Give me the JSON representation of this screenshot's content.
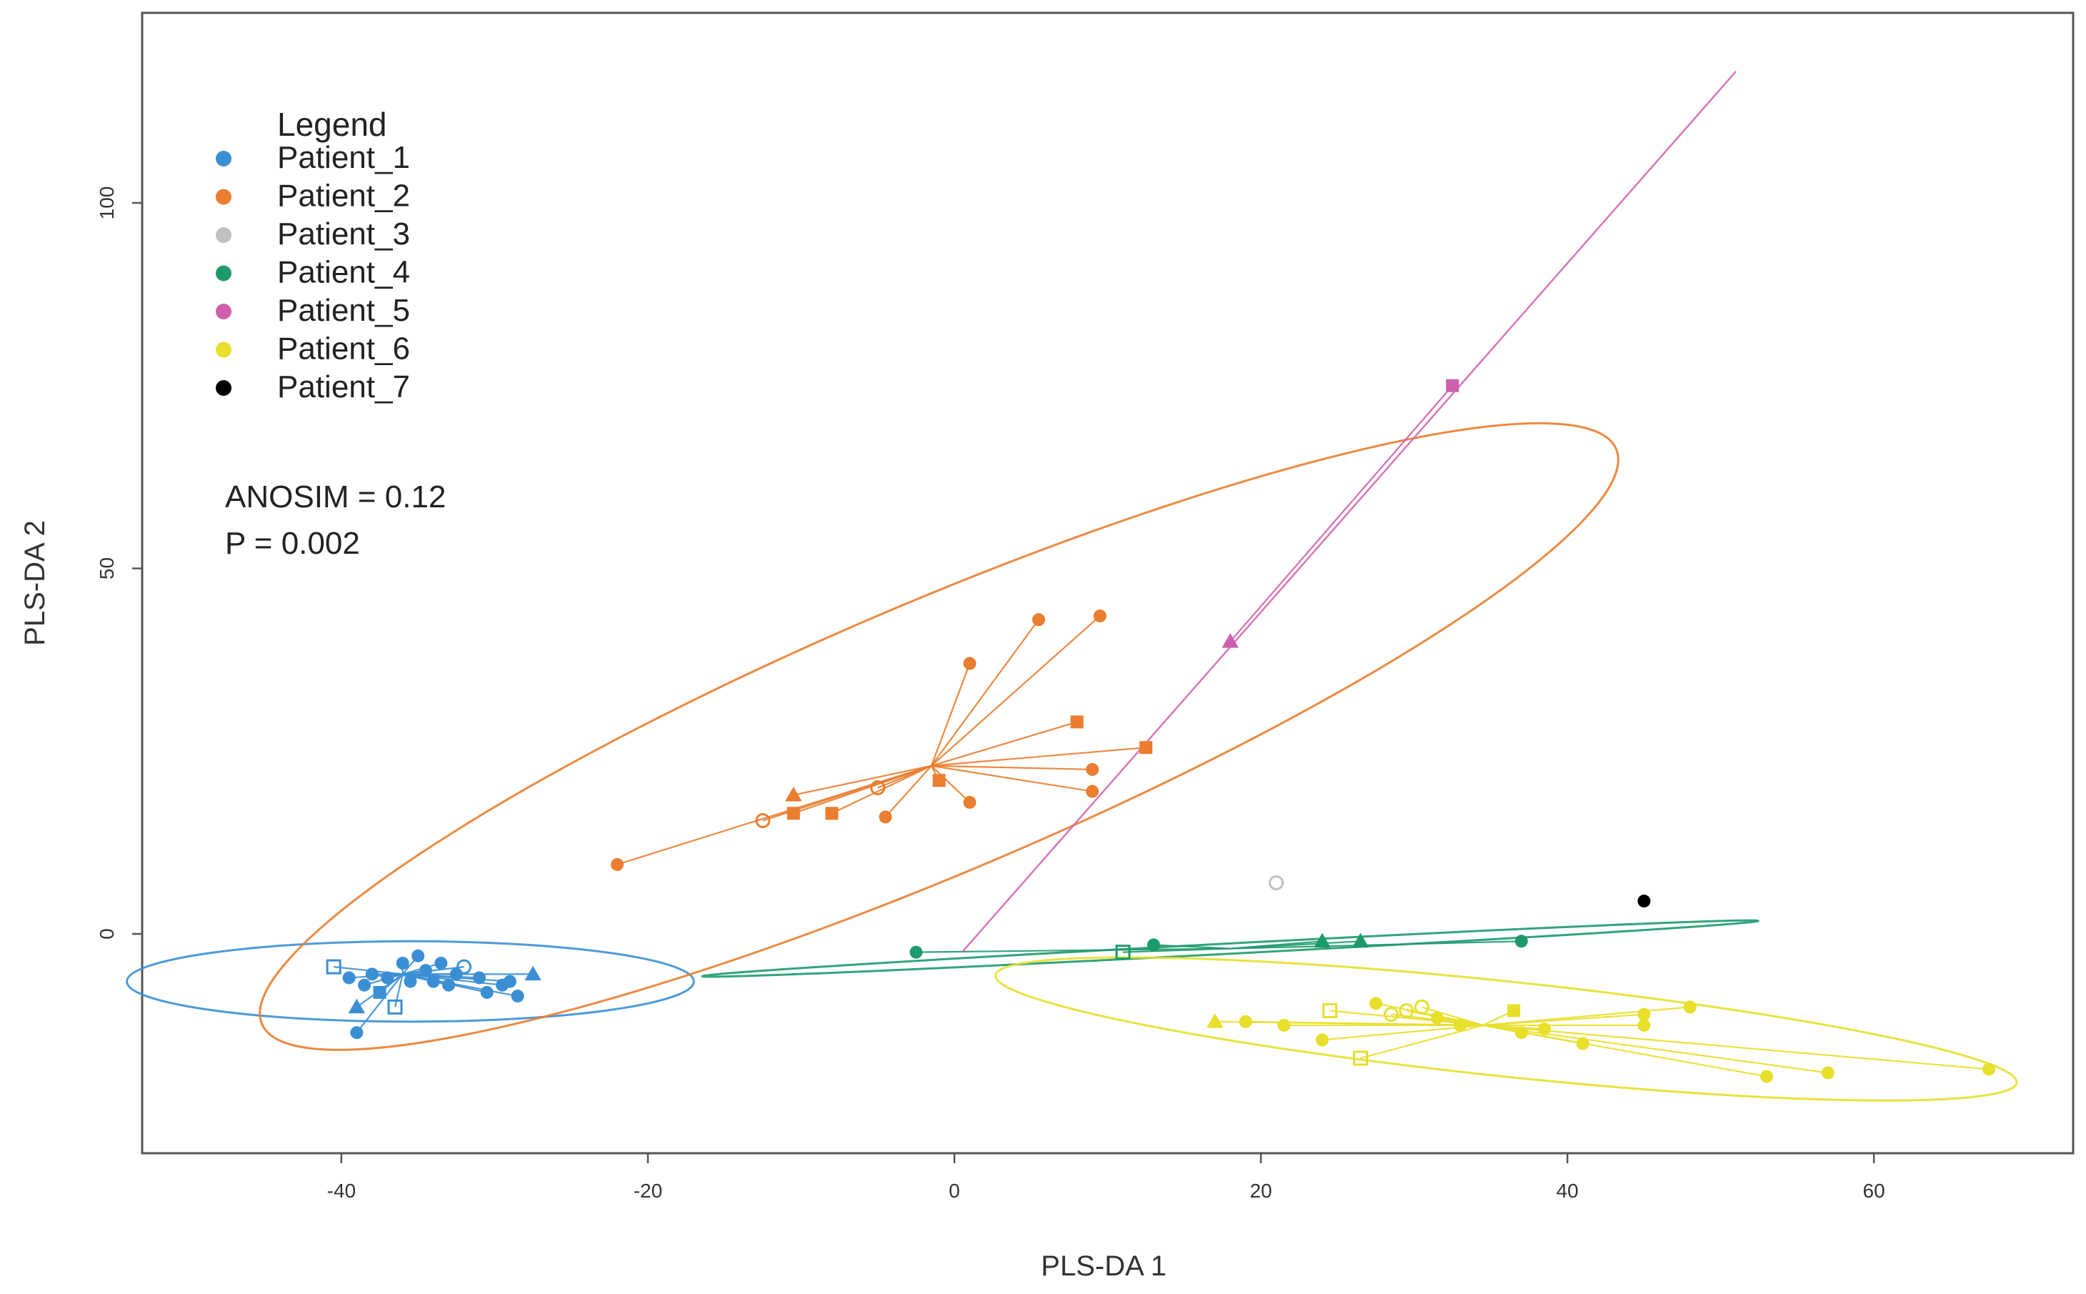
{
  "chart_data": {
    "type": "scatter",
    "title": "",
    "xlabel": "PLS-DA 1",
    "ylabel": "PLS-DA 2",
    "xlim": [
      -53,
      73
    ],
    "ylim": [
      -30,
      126
    ],
    "xticks": [
      -40,
      -20,
      0,
      20,
      40,
      60
    ],
    "yticks": [
      0,
      50,
      100
    ],
    "legend": {
      "title": "Legend",
      "position": "top-left",
      "entries": [
        "Patient_1",
        "Patient_2",
        "Patient_3",
        "Patient_4",
        "Patient_5",
        "Patient_6",
        "Patient_7"
      ]
    },
    "annotations": [
      "ANOSIM = 0.12",
      "P = 0.002"
    ],
    "series": [
      {
        "name": "Patient_1",
        "color": "#3a8fd4",
        "centroid": [
          -36,
          -5.5
        ],
        "ellipse": {
          "center": [
            -35.5,
            -6.5
          ],
          "rx": 18.5,
          "ry": 5.5,
          "angle": 0
        },
        "points": [
          {
            "x": -40.5,
            "y": -4.5,
            "shape": "square-open"
          },
          {
            "x": -39.5,
            "y": -6,
            "shape": "circle"
          },
          {
            "x": -38.5,
            "y": -7,
            "shape": "circle"
          },
          {
            "x": -38,
            "y": -5.5,
            "shape": "circle"
          },
          {
            "x": -37.5,
            "y": -8,
            "shape": "square"
          },
          {
            "x": -37,
            "y": -6,
            "shape": "circle"
          },
          {
            "x": -36.5,
            "y": -10,
            "shape": "square-open"
          },
          {
            "x": -36,
            "y": -4,
            "shape": "circle"
          },
          {
            "x": -35.5,
            "y": -6.5,
            "shape": "circle"
          },
          {
            "x": -35,
            "y": -3,
            "shape": "circle"
          },
          {
            "x": -34.5,
            "y": -5,
            "shape": "circle"
          },
          {
            "x": -34,
            "y": -6.5,
            "shape": "circle"
          },
          {
            "x": -33.5,
            "y": -4,
            "shape": "circle"
          },
          {
            "x": -33,
            "y": -7,
            "shape": "circle"
          },
          {
            "x": -32.5,
            "y": -5.5,
            "shape": "circle"
          },
          {
            "x": -32,
            "y": -4.5,
            "shape": "circle-open"
          },
          {
            "x": -31,
            "y": -6,
            "shape": "circle"
          },
          {
            "x": -30.5,
            "y": -8,
            "shape": "circle"
          },
          {
            "x": -29.5,
            "y": -7,
            "shape": "circle"
          },
          {
            "x": -29,
            "y": -6.5,
            "shape": "circle"
          },
          {
            "x": -28.5,
            "y": -8.5,
            "shape": "circle"
          },
          {
            "x": -27.5,
            "y": -5.5,
            "shape": "triangle"
          },
          {
            "x": -39,
            "y": -10,
            "shape": "triangle"
          },
          {
            "x": -39,
            "y": -13.5,
            "shape": "circle"
          }
        ]
      },
      {
        "name": "Patient_2",
        "color": "#ea7d2e",
        "centroid": [
          -1.5,
          23
        ],
        "ellipse": {
          "center": [
            -1,
            27
          ],
          "rx": 48,
          "ry": 18.5,
          "angle": 23
        },
        "points": [
          {
            "x": -22,
            "y": 9.5,
            "shape": "circle"
          },
          {
            "x": -12.5,
            "y": 15.5,
            "shape": "circle-open"
          },
          {
            "x": -10.5,
            "y": 16.5,
            "shape": "square"
          },
          {
            "x": -10.5,
            "y": 19,
            "shape": "triangle"
          },
          {
            "x": -8,
            "y": 16.5,
            "shape": "square"
          },
          {
            "x": -4.5,
            "y": 16,
            "shape": "circle"
          },
          {
            "x": -5,
            "y": 20,
            "shape": "circle-open"
          },
          {
            "x": -1,
            "y": 21,
            "shape": "square"
          },
          {
            "x": 1,
            "y": 18,
            "shape": "circle"
          },
          {
            "x": 1,
            "y": 37,
            "shape": "circle"
          },
          {
            "x": 5.5,
            "y": 43,
            "shape": "circle"
          },
          {
            "x": 9.5,
            "y": 43.5,
            "shape": "circle"
          },
          {
            "x": 8,
            "y": 29,
            "shape": "square"
          },
          {
            "x": 9,
            "y": 22.5,
            "shape": "circle"
          },
          {
            "x": 9,
            "y": 19.5,
            "shape": "circle"
          },
          {
            "x": 12.5,
            "y": 25.5,
            "shape": "square"
          }
        ]
      },
      {
        "name": "Patient_3",
        "color": "#c0c0c0",
        "centroid": null,
        "ellipse": null,
        "points": [
          {
            "x": 21,
            "y": 7,
            "shape": "circle-open"
          }
        ]
      },
      {
        "name": "Patient_4",
        "color": "#1d9a6c",
        "centroid": [
          18,
          -2
        ],
        "ellipse": {
          "center": [
            18,
            -2
          ],
          "rx": 34.5,
          "ry": 0.7,
          "angle": 3
        },
        "points": [
          {
            "x": -2.5,
            "y": -2.5,
            "shape": "circle"
          },
          {
            "x": 11,
            "y": -2.5,
            "shape": "square-open"
          },
          {
            "x": 13,
            "y": -1.5,
            "shape": "circle"
          },
          {
            "x": 24,
            "y": -1,
            "shape": "triangle"
          },
          {
            "x": 26.5,
            "y": -1,
            "shape": "triangle"
          },
          {
            "x": 37,
            "y": -1,
            "shape": "circle"
          }
        ]
      },
      {
        "name": "Patient_5",
        "color": "#cf5fae",
        "centroid": [
          18,
          40
        ],
        "ellipse": null,
        "line": [
          [
            0.5,
            -2.5
          ],
          [
            51,
            118
          ]
        ],
        "points": [
          {
            "x": 18,
            "y": 40,
            "shape": "triangle"
          },
          {
            "x": 32.5,
            "y": 75,
            "shape": "square"
          }
        ]
      },
      {
        "name": "Patient_6",
        "color": "#e8df2a",
        "centroid": [
          34.5,
          -12.5
        ],
        "ellipse": {
          "center": [
            36,
            -13
          ],
          "rx": 33.5,
          "ry": 6.5,
          "angle": -6
        },
        "points": [
          {
            "x": 17,
            "y": -12,
            "shape": "triangle"
          },
          {
            "x": 19,
            "y": -12,
            "shape": "circle"
          },
          {
            "x": 21.5,
            "y": -12.5,
            "shape": "circle"
          },
          {
            "x": 24,
            "y": -14.5,
            "shape": "circle"
          },
          {
            "x": 24.5,
            "y": -10.5,
            "shape": "square-open"
          },
          {
            "x": 26.5,
            "y": -17,
            "shape": "square-open"
          },
          {
            "x": 27.5,
            "y": -9.5,
            "shape": "circle"
          },
          {
            "x": 28.5,
            "y": -11,
            "shape": "circle-open"
          },
          {
            "x": 29.5,
            "y": -10.5,
            "shape": "circle-open"
          },
          {
            "x": 30.5,
            "y": -10,
            "shape": "circle-open"
          },
          {
            "x": 31.5,
            "y": -11.5,
            "shape": "circle"
          },
          {
            "x": 33,
            "y": -12.5,
            "shape": "circle"
          },
          {
            "x": 36.5,
            "y": -10.5,
            "shape": "square"
          },
          {
            "x": 37,
            "y": -13.5,
            "shape": "circle"
          },
          {
            "x": 38.5,
            "y": -13,
            "shape": "circle"
          },
          {
            "x": 41,
            "y": -15,
            "shape": "circle"
          },
          {
            "x": 45,
            "y": -11,
            "shape": "circle"
          },
          {
            "x": 45,
            "y": -12.5,
            "shape": "circle"
          },
          {
            "x": 48,
            "y": -10,
            "shape": "circle"
          },
          {
            "x": 53,
            "y": -19.5,
            "shape": "circle"
          },
          {
            "x": 57,
            "y": -19,
            "shape": "circle"
          },
          {
            "x": 67.5,
            "y": -18.5,
            "shape": "circle"
          }
        ]
      },
      {
        "name": "Patient_7",
        "color": "#000000",
        "centroid": null,
        "ellipse": null,
        "points": [
          {
            "x": 45,
            "y": 4.5,
            "shape": "circle"
          }
        ]
      }
    ]
  }
}
